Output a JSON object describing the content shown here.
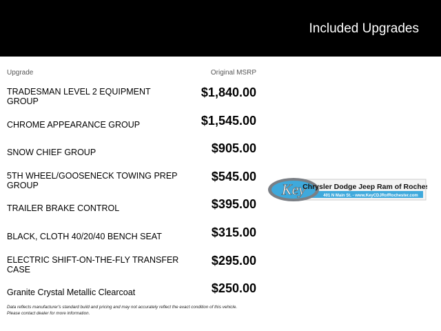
{
  "header": {
    "title": "Included Upgrades"
  },
  "columns": {
    "upgrade": "Upgrade",
    "msrp": "Original MSRP"
  },
  "rows": [
    {
      "label": "TRADESMAN LEVEL 2 EQUIPMENT GROUP",
      "price": "$1,840.00"
    },
    {
      "label": "CHROME APPEARANCE GROUP",
      "price": "$1,545.00"
    },
    {
      "label": "SNOW CHIEF GROUP",
      "price": "$905.00"
    },
    {
      "label": "5TH WHEEL/GOOSENECK TOWING PREP GROUP",
      "price": "$545.00"
    },
    {
      "label": "TRAILER BRAKE CONTROL",
      "price": "$395.00"
    },
    {
      "label": "BLACK, CLOTH 40/20/40 BENCH SEAT",
      "price": "$315.00"
    },
    {
      "label": "ELECTRIC SHIFT-ON-THE-FLY TRANSFER CASE",
      "price": "$295.00"
    },
    {
      "label": "Granite Crystal Metallic Clearcoat",
      "price": "$250.00"
    }
  ],
  "footer": {
    "line1": "Data reflects manufacturer's standard build and pricing and may not accurately reflect the exact condition of this vehicle.",
    "line2": "Please contact dealer for more information."
  },
  "logo": {
    "mark": "Key",
    "name": "Chrysler Dodge Jeep Ram of Rochester",
    "address": "401 N Main St. - www.KeyCDJRofRochester.com",
    "colors": {
      "blue": "#3fa9dc",
      "gray": "#7a7f85"
    }
  }
}
